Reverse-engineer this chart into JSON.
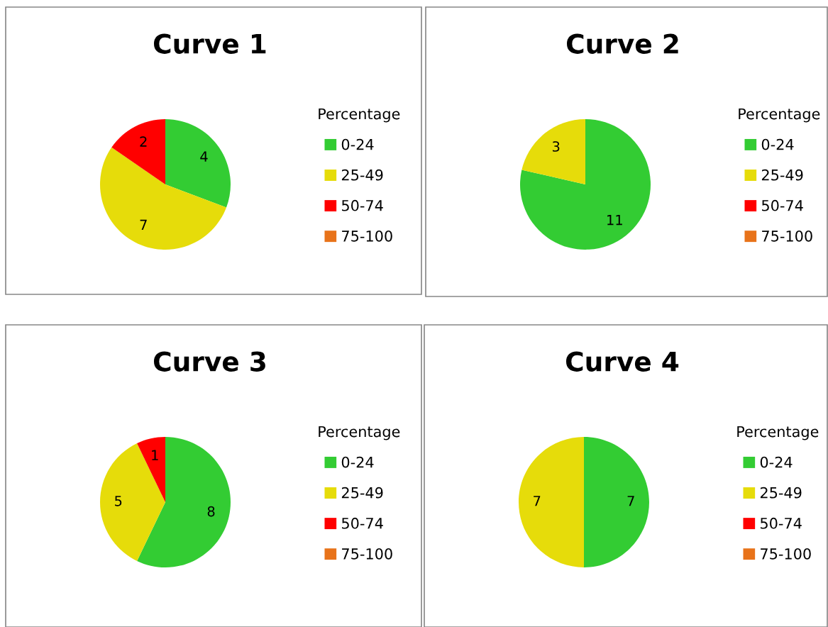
{
  "chart_data": [
    {
      "type": "pie",
      "title": "Curve 1",
      "legend_title": "Percentage",
      "legend": "right",
      "categories": [
        "0-24",
        "25-49",
        "50-74",
        "75-100"
      ],
      "colors": [
        "#33cc33",
        "#e6dc0a",
        "#ff0000",
        "#e8731a"
      ],
      "values": [
        4,
        7,
        2,
        0
      ],
      "value_labels": [
        "4",
        "7",
        "2",
        null
      ]
    },
    {
      "type": "pie",
      "title": "Curve 2",
      "legend_title": "Percentage",
      "legend": "right",
      "categories": [
        "0-24",
        "25-49",
        "50-74",
        "75-100"
      ],
      "colors": [
        "#33cc33",
        "#e6dc0a",
        "#ff0000",
        "#e8731a"
      ],
      "values": [
        11,
        3,
        0,
        0
      ],
      "value_labels": [
        "11",
        "3",
        null,
        null
      ]
    },
    {
      "type": "pie",
      "title": "Curve 3",
      "legend_title": "Percentage",
      "legend": "right",
      "categories": [
        "0-24",
        "25-49",
        "50-74",
        "75-100"
      ],
      "colors": [
        "#33cc33",
        "#e6dc0a",
        "#ff0000",
        "#e8731a"
      ],
      "values": [
        8,
        5,
        1,
        0
      ],
      "value_labels": [
        "8",
        "5",
        "1",
        null
      ]
    },
    {
      "type": "pie",
      "title": "Curve 4",
      "legend_title": "Percentage",
      "legend": "right",
      "categories": [
        "0-24",
        "25-49",
        "50-74",
        "75-100"
      ],
      "colors": [
        "#33cc33",
        "#e6dc0a",
        "#ff0000",
        "#e8731a"
      ],
      "values": [
        7,
        7,
        0,
        0
      ],
      "value_labels": [
        "7",
        "7",
        null,
        null
      ]
    }
  ]
}
